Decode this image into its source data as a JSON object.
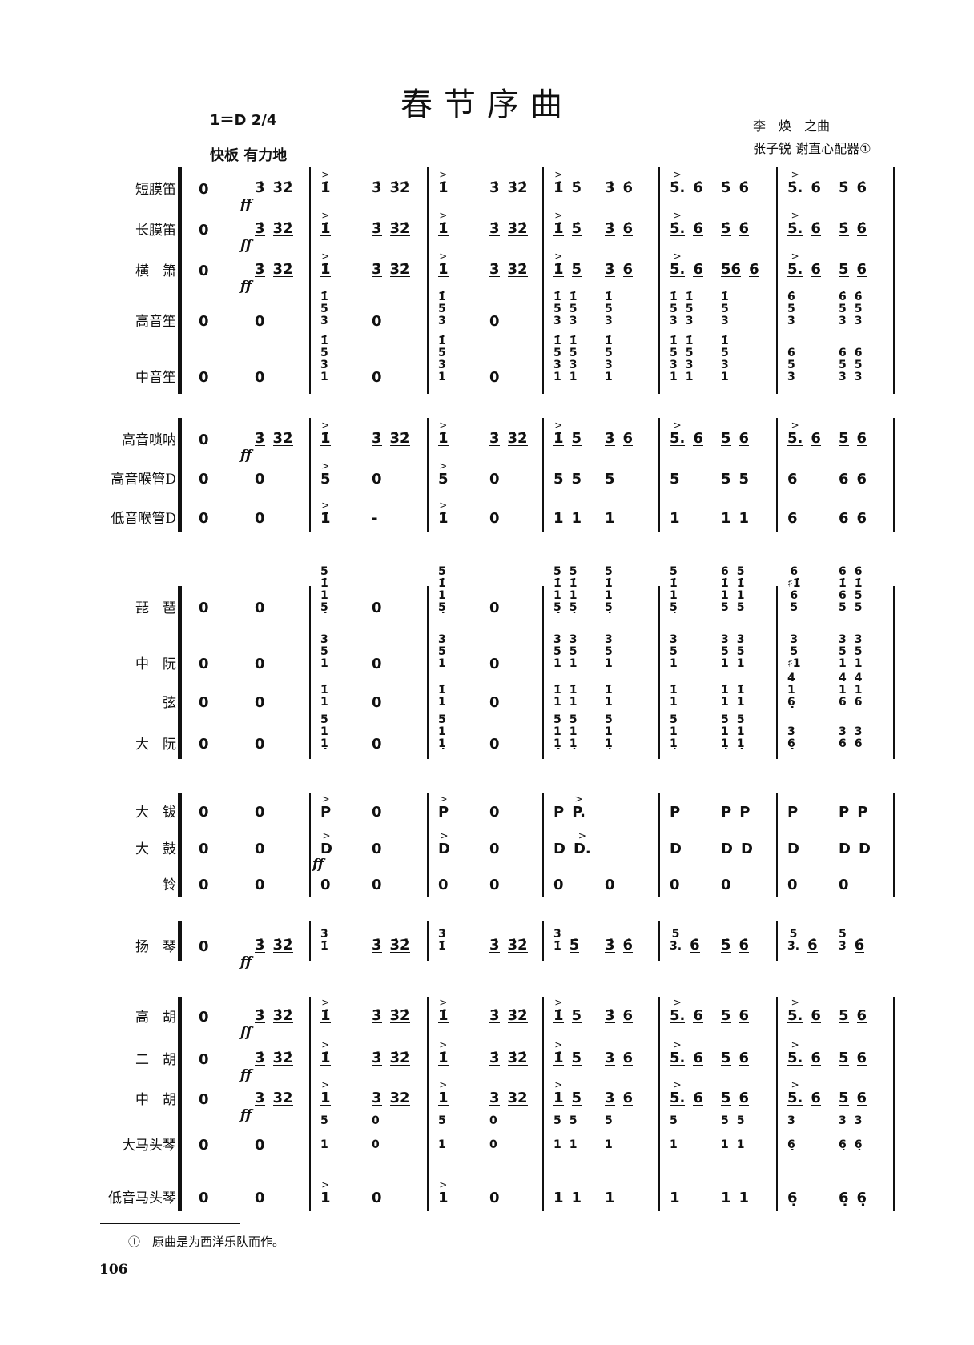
{
  "title": "春节序曲",
  "key_signature": "1＝D 2/4",
  "tempo": "快板  有力地",
  "composer": "李　焕　之曲",
  "arrangers": "张子锐  谢直心配器①",
  "footnote": "①　原曲是为西洋乐队而作。",
  "page_number": "106",
  "rows": [
    {
      "label": "短膜笛",
      "ul": true,
      "dyn": "ff",
      "measures": [
        [
          "0",
          "3̇ 3̇2̇"
        ],
        [
          ">1̇",
          "3̇ 3̇2̇"
        ],
        [
          ">1̇",
          "3̇ 3̇2̇"
        ],
        [
          ">1̇ 5̇",
          "3̇ 6̇"
        ],
        [
          ">5̇. 6̇",
          "5̇ 6̇"
        ],
        [
          ">5̇. 6̇",
          "5̇ 6̇"
        ]
      ]
    },
    {
      "label": "长膜笛",
      "ul": true,
      "dyn": "ff",
      "measures": [
        [
          "0",
          "3̇ 3̇2̇"
        ],
        [
          ">1̇",
          "3̇ 3̇2̇"
        ],
        [
          ">1̇",
          "3̇ 3̇2̇"
        ],
        [
          ">1̇ 5̇",
          "3̇ 6̇"
        ],
        [
          ">5̇. 6̇",
          "5̇ 6̇"
        ],
        [
          ">5̇. 6̇",
          "5̇ 6̇"
        ]
      ]
    },
    {
      "label": "横　箫",
      "ul": true,
      "dyn": "ff",
      "measures": [
        [
          "0",
          "3̇ 3̇2̇"
        ],
        [
          ">1̇",
          "3̇ 3̇2̇"
        ],
        [
          ">1̇",
          "3̇ 3̇2̇"
        ],
        [
          ">1̇ 5̇",
          "3̇ 6̇"
        ],
        [
          ">5̇. 6̇",
          "5̇6̇ 6̇"
        ],
        [
          ">5̇. 6̇",
          "5̇ 6̇"
        ]
      ]
    },
    {
      "label": "高音笙",
      "measures": [
        [
          "0",
          "0"
        ],
        [
          "1̇\n5\n3",
          "0"
        ],
        [
          "1̇\n5\n3",
          "0"
        ],
        [
          "1̇\n5\n3 1̇\n5\n3",
          "1̇\n5\n3"
        ],
        [
          "1̇\n5\n3 1̇\n5\n3",
          "1̇\n5\n3"
        ],
        [
          "6̇\n5\n3",
          "6̇\n5\n3 6̇\n5\n3"
        ]
      ]
    },
    {
      "label": "中音笙",
      "measures": [
        [
          "0",
          "0"
        ],
        [
          "1̇\n5\n3\n1",
          "0"
        ],
        [
          "1̇\n5\n3\n1",
          "0"
        ],
        [
          "1̇\n5\n3\n1 1̇\n5\n3\n1",
          "1̇\n5\n3\n1"
        ],
        [
          "1̇\n5\n3\n1 1̇\n5\n3\n1",
          "1̇\n5\n3\n1"
        ],
        [
          "6\n5\n3",
          "6\n5\n3 6\n5\n3"
        ]
      ]
    },
    {
      "label": "高音唢呐",
      "ul": true,
      "dyn": "ff",
      "measures": [
        [
          "0",
          "3̇ 3̇2̇"
        ],
        [
          ">1̇",
          "3̇ 3̇2̇"
        ],
        [
          ">1̇",
          "3̇ 3̇2̇"
        ],
        [
          ">1̇ 5",
          "3̇ 6"
        ],
        [
          ">5. 6",
          "5 6"
        ],
        [
          ">5. 6",
          "5 6"
        ]
      ]
    },
    {
      "label": "高音喉管D",
      "measures": [
        [
          "0",
          "0"
        ],
        [
          ">5",
          "0"
        ],
        [
          ">5",
          "0"
        ],
        [
          "5 5",
          "5"
        ],
        [
          "5",
          "5 5"
        ],
        [
          "6",
          "6 6"
        ]
      ]
    },
    {
      "label": "低音喉管D",
      "measures": [
        [
          "0",
          "0"
        ],
        [
          ">1̇",
          "-"
        ],
        [
          ">1̇",
          "0"
        ],
        [
          "1 1",
          "1"
        ],
        [
          "1",
          "1 1"
        ],
        [
          "6",
          "6 6"
        ]
      ]
    },
    {
      "label": "琵　琶",
      "measures": [
        [
          "0",
          "0"
        ],
        [
          "5\n1̇\n1\n5̣",
          "0"
        ],
        [
          "5\n1̇\n1\n5̣",
          "0"
        ],
        [
          "5\n1̇\n1\n5̣ 5\n1̇\n1\n5̣",
          "5\n1̇\n1\n5̣"
        ],
        [
          "5\n1̇\n1\n5̣",
          "6\n1̇\n1\n5 5\n1̇\n1\n5"
        ],
        [
          "6\n♯1̇\n6\n5",
          "6\n1̇\n6\n5 6\n1̇\n5\n5"
        ]
      ]
    },
    {
      "label": "中　阮",
      "measures": [
        [
          "0",
          "0"
        ],
        [
          "3\n5\n1",
          "0"
        ],
        [
          "3\n5\n1",
          "0"
        ],
        [
          "3\n5\n1 3\n5\n1",
          "3\n5\n1"
        ],
        [
          "3\n5\n1",
          "3\n5\n1 3\n5\n1"
        ],
        [
          "3\n5\n♯1",
          "3\n5\n1 3\n5\n1"
        ]
      ]
    },
    {
      "label": "弦",
      "measures": [
        [
          "0",
          "0"
        ],
        [
          "1̇\n1",
          "0"
        ],
        [
          "1̇\n1",
          "0"
        ],
        [
          "1̇\n1 1̇\n1",
          "1̇\n1"
        ],
        [
          "1̇\n1",
          "1̇\n1 1̇\n1"
        ],
        [
          "4\n1\n6̣",
          "4\n1\n6 4\n1\n6"
        ]
      ]
    },
    {
      "label": "大　阮",
      "measures": [
        [
          "0",
          "0"
        ],
        [
          "5\n1\n1̣",
          "0"
        ],
        [
          "5\n1\n1̣",
          "0"
        ],
        [
          "5\n1\n1̣ 5\n1\n1̣",
          "5\n1\n1̣"
        ],
        [
          "5\n1\n1̣",
          "5\n1\n1̣ 5\n1\n1̣"
        ],
        [
          "3\n6̣",
          "3\n6 3\n6"
        ]
      ]
    },
    {
      "label": "大　钹",
      "measures": [
        [
          "0",
          "0"
        ],
        [
          ">P",
          "0"
        ],
        [
          ">P",
          "0"
        ],
        [
          "P >P.",
          ""
        ],
        [
          "P",
          "P P"
        ],
        [
          "P",
          "P P"
        ]
      ]
    },
    {
      "label": "大　鼓",
      "measures": [
        [
          "0",
          "0"
        ],
        [
          ">D",
          "0"
        ],
        [
          ">D",
          "0"
        ],
        [
          "D >D.",
          ""
        ],
        [
          "D",
          "D D"
        ],
        [
          "D",
          "D D"
        ]
      ],
      "dyn_m1": "ff"
    },
    {
      "label": "铃",
      "measures": [
        [
          "0",
          "0"
        ],
        [
          "0",
          "0"
        ],
        [
          "0",
          "0"
        ],
        [
          "0",
          "0"
        ],
        [
          "0",
          "0"
        ],
        [
          "0",
          "0"
        ]
      ]
    },
    {
      "label": "扬　琴",
      "ul": true,
      "dyn": "ff",
      "measures": [
        [
          "0",
          "3̇ 3̇2̇"
        ],
        [
          "3̇\n1̇",
          "3̇ 3̇2̇"
        ],
        [
          "3̇\n1̇",
          "3̇ 3̇2̇"
        ],
        [
          "3̇\n1̇ 5̇",
          "3̇ 6̇"
        ],
        [
          "5̇\n3̇. 6̇",
          "5̇ 6̇"
        ],
        [
          "5̇\n3̇. 6̇",
          "5̇\n3̇ 6̇"
        ]
      ]
    },
    {
      "label": "高　胡",
      "ul": true,
      "dyn": "ff",
      "measures": [
        [
          "0",
          "3̇ 3̇2̇"
        ],
        [
          ">1̇",
          "3̇ 3̇2̇"
        ],
        [
          ">1̇",
          "3̇ 3̇2̇"
        ],
        [
          ">1̇ 5",
          "3̇ 6"
        ],
        [
          ">5. 6",
          "5 6"
        ],
        [
          ">5. 6",
          "5 6"
        ]
      ]
    },
    {
      "label": "二　胡",
      "ul": true,
      "dyn": "ff",
      "measures": [
        [
          "0",
          "3̇ 3̇2̇"
        ],
        [
          ">1̇",
          "3̇ 3̇2̇"
        ],
        [
          ">1̇",
          "3̇ 3̇2̇"
        ],
        [
          ">1̇ 5",
          "3 6"
        ],
        [
          ">5. 6",
          "5 6"
        ],
        [
          ">5. 6",
          "5 6"
        ]
      ]
    },
    {
      "label": "中　胡",
      "ul": true,
      "dyn": "ff",
      "measures": [
        [
          "0",
          "3 32"
        ],
        [
          ">1",
          "3 32"
        ],
        [
          ">1",
          "3 32"
        ],
        [
          ">1 5",
          "3 6"
        ],
        [
          ">5. 6",
          "5 6"
        ],
        [
          ">5. 6",
          "5 6"
        ]
      ]
    },
    {
      "label": "大马头琴",
      "measures": [
        [
          "0",
          "0"
        ],
        [
          "5\n\n1",
          "0\n\n0"
        ],
        [
          "5\n\n1",
          "0\n\n0"
        ],
        [
          "5\n\n1 5\n\n1",
          "5\n\n1"
        ],
        [
          "5\n\n1",
          "5\n\n1 5\n\n1"
        ],
        [
          "3\n\n6̣",
          "3\n\n6̣ 3\n\n6̣"
        ]
      ]
    },
    {
      "label": "低音马头琴",
      "measures": [
        [
          "0",
          "0"
        ],
        [
          ">1",
          "0"
        ],
        [
          ">1",
          "0"
        ],
        [
          "1 1",
          "1"
        ],
        [
          "1",
          "1 1"
        ],
        [
          "6̣",
          "6̣ 6̣"
        ]
      ]
    }
  ]
}
